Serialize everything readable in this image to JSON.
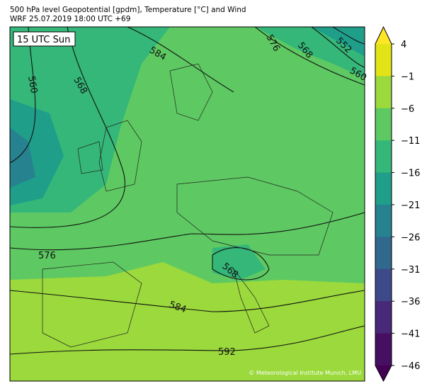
{
  "header": {
    "title": "500 hPa level Geopotential [gpdm], Temperature [°C] and Wind",
    "subtitle": "WRF 25.07.2019 18:00 UTC +69"
  },
  "map": {
    "time_label": "15 UTC Sun",
    "contour_labels": [
      "560",
      "568",
      "584",
      "576",
      "552",
      "560",
      "568",
      "576",
      "568",
      "584",
      "592"
    ],
    "copyright": "© Meteorological Institute Munich, LMU"
  },
  "colorbar": {
    "ticks": [
      4,
      {
        "value": -1,
        "label": "−1"
      },
      {
        "value": -6,
        "label": "−6"
      },
      {
        "value": -11,
        "label": "−11"
      },
      {
        "value": -16,
        "label": "−16"
      },
      {
        "value": -21,
        "label": "−21"
      },
      {
        "value": -26,
        "label": "−26"
      },
      {
        "value": -31,
        "label": "−31"
      },
      {
        "value": -36,
        "label": "−36"
      },
      {
        "value": -41,
        "label": "−41"
      },
      {
        "value": -46,
        "label": "−46"
      }
    ],
    "colors": [
      "#e2e418",
      "#9bd93c",
      "#5ec962",
      "#35b779",
      "#1f9e89",
      "#26828e",
      "#31688e",
      "#3e4989",
      "#482878",
      "#470f62"
    ],
    "over_color": "#fde725",
    "under_color": "#440154"
  }
}
